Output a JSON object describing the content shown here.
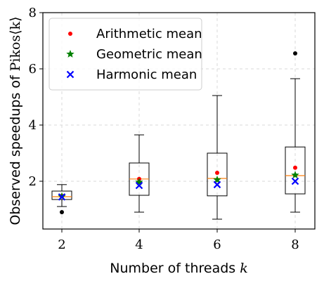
{
  "chart_data": {
    "type": "box",
    "xlabel": "Number of threads",
    "xlabel_var": "k",
    "ylabel_prefix": "Observed speedups of",
    "ylabel_math": "Pikos⟨k⟩",
    "ylim": [
      0.3,
      8
    ],
    "yticks": [
      2,
      4,
      6,
      8
    ],
    "categories": [
      "2",
      "4",
      "6",
      "8"
    ],
    "grid": true,
    "legend_position": "top-left",
    "boxes": [
      {
        "x": "2",
        "whisker_low": 1.1,
        "q1": 1.35,
        "median": 1.45,
        "q3": 1.65,
        "whisker_high": 1.88,
        "outliers": [
          0.9
        ]
      },
      {
        "x": "4",
        "whisker_low": 0.9,
        "q1": 1.5,
        "median": 2.08,
        "q3": 2.65,
        "whisker_high": 3.65,
        "outliers": []
      },
      {
        "x": "6",
        "whisker_low": 0.65,
        "q1": 1.48,
        "median": 2.1,
        "q3": 3.0,
        "whisker_high": 5.05,
        "outliers": []
      },
      {
        "x": "8",
        "whisker_low": 0.9,
        "q1": 1.55,
        "median": 2.2,
        "q3": 3.22,
        "whisker_high": 5.65,
        "outliers": [
          6.55
        ]
      }
    ],
    "series": [
      {
        "name": "Arithmetic mean",
        "marker": "dot",
        "color": "#ff0000",
        "values": [
          1.48,
          2.08,
          2.3,
          2.48
        ]
      },
      {
        "name": "Geometric mean",
        "marker": "star",
        "color": "#008000",
        "values": [
          1.46,
          1.97,
          2.05,
          2.22
        ]
      },
      {
        "name": "Harmonic mean",
        "marker": "x",
        "color": "#0000ff",
        "values": [
          1.44,
          1.85,
          1.88,
          2.0
        ]
      }
    ],
    "colors": {
      "median": "#ff7f0e",
      "grid": "#d9d9d9",
      "box": "#000000",
      "outlier": "#000000"
    }
  }
}
